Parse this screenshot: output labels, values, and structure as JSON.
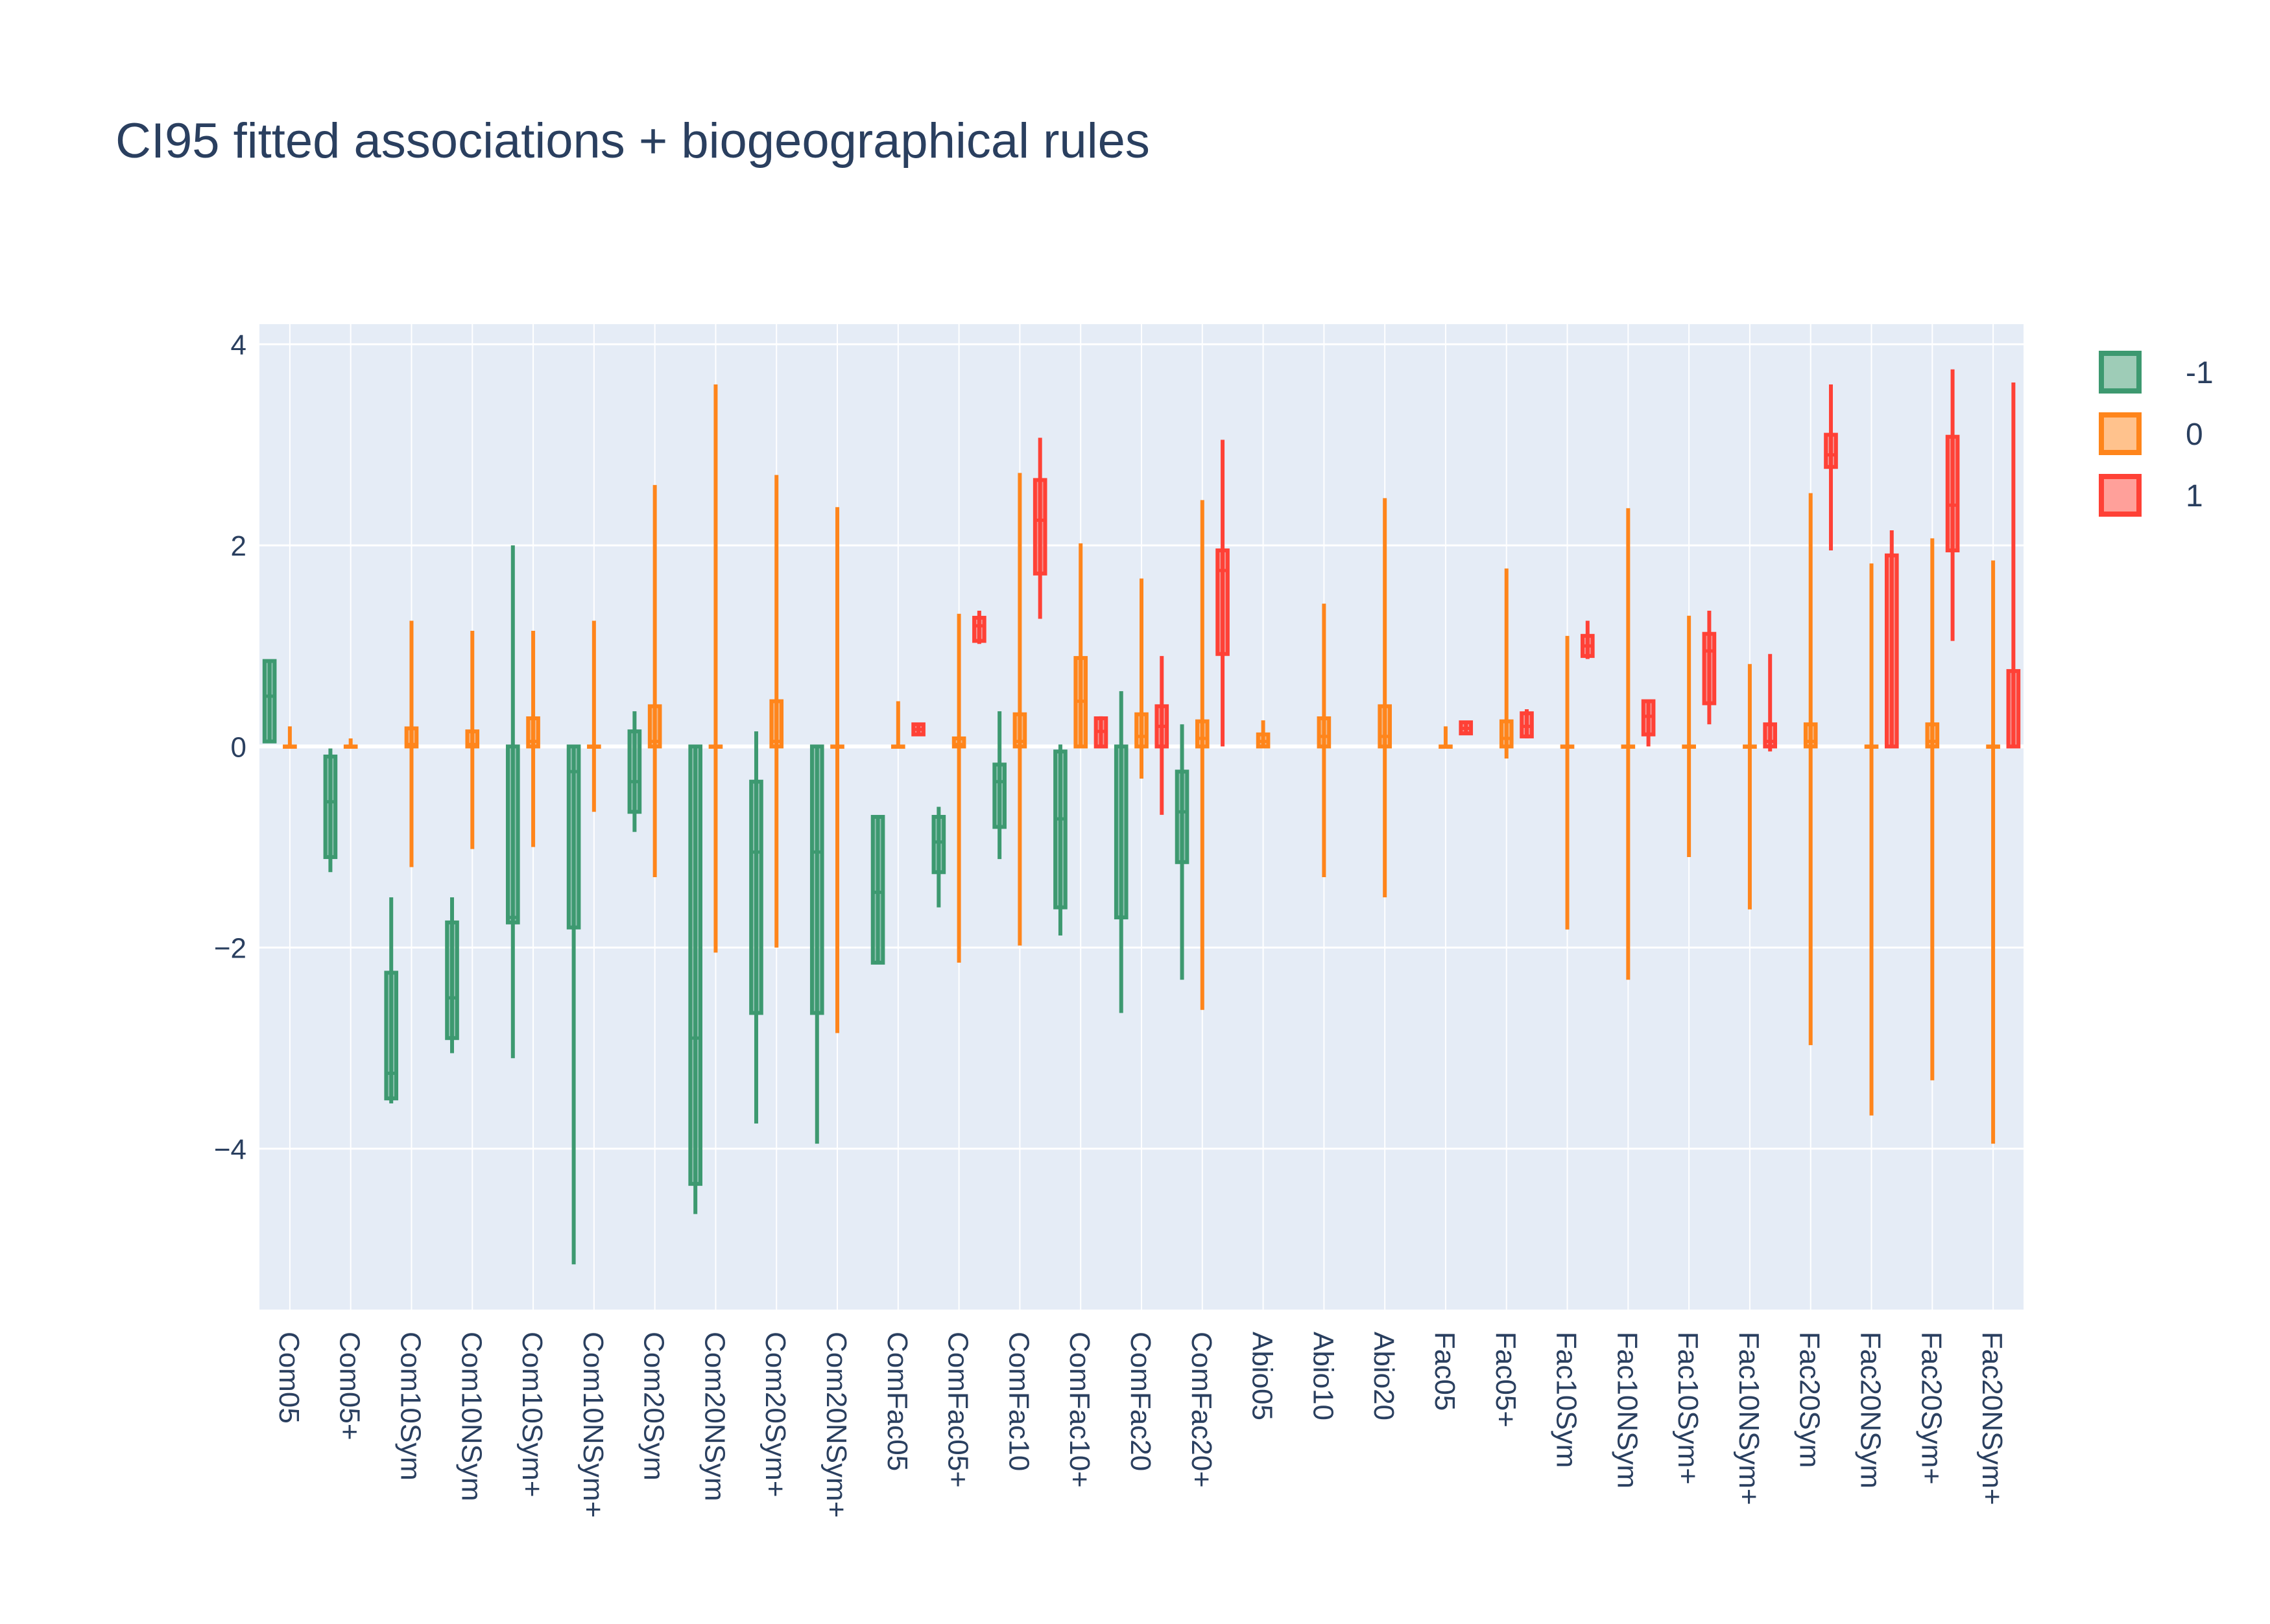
{
  "chart_data": {
    "type": "box",
    "title": "CI95 fitted associations + biogeographical rules",
    "xlabel": "",
    "ylabel": "",
    "ylim": [
      -5.6,
      4.2
    ],
    "yticks": [
      4,
      2,
      0,
      -2,
      -4
    ],
    "ytick_labels": [
      "4",
      "2",
      "0",
      "−2",
      "−4"
    ],
    "grid": true,
    "legend_position": "top-right",
    "categories": [
      "Com05",
      "Com05+",
      "Com10Sym",
      "Com10NSym",
      "Com10Sym+",
      "Com10NSym+",
      "Com20Sym",
      "Com20NSym",
      "Com20Sym+",
      "Com20NSym+",
      "ComFac05",
      "ComFac05+",
      "ComFac10",
      "ComFac10+",
      "ComFac20",
      "ComFac20+",
      "Abio05",
      "Abio10",
      "Abio20",
      "Fac05",
      "Fac05+",
      "Fac10Sym",
      "Fac10NSym",
      "Fac10Sym+",
      "Fac10NSym+",
      "Fac20Sym",
      "Fac20NSym",
      "Fac20Sym+",
      "Fac20NSym+"
    ],
    "series": [
      {
        "name": "-1",
        "color": "#3d9970",
        "fill": "rgba(61,153,112,0.5)",
        "boxes": [
          {
            "cat": "Com05",
            "lower": 0.05,
            "q1": 0.05,
            "median": 0.5,
            "q3": 0.85,
            "upper": 0.85
          },
          {
            "cat": "Com05+",
            "lower": -1.25,
            "q1": -1.1,
            "median": -0.55,
            "q3": -0.1,
            "upper": -0.02
          },
          {
            "cat": "Com10Sym",
            "lower": -3.55,
            "q1": -3.5,
            "median": -3.25,
            "q3": -2.25,
            "upper": -1.5
          },
          {
            "cat": "Com10NSym",
            "lower": -3.05,
            "q1": -2.9,
            "median": -2.5,
            "q3": -1.75,
            "upper": -1.5
          },
          {
            "cat": "Com10Sym+",
            "lower": -3.1,
            "q1": -1.75,
            "median": -1.7,
            "q3": 0.0,
            "upper": 2.0
          },
          {
            "cat": "Com10NSym+",
            "lower": -5.15,
            "q1": -1.8,
            "median": -0.25,
            "q3": 0.0,
            "upper": 0.0
          },
          {
            "cat": "Com20Sym",
            "lower": -0.85,
            "q1": -0.65,
            "median": -0.35,
            "q3": 0.15,
            "upper": 0.35
          },
          {
            "cat": "Com20NSym",
            "lower": -4.65,
            "q1": -4.35,
            "median": -2.9,
            "q3": 0.0,
            "upper": 0.0
          },
          {
            "cat": "Com20Sym+",
            "lower": -3.75,
            "q1": -2.65,
            "median": -1.05,
            "q3": -0.35,
            "upper": 0.15
          },
          {
            "cat": "Com20NSym+",
            "lower": -3.95,
            "q1": -2.65,
            "median": -1.05,
            "q3": 0.0,
            "upper": 0.0
          },
          {
            "cat": "ComFac05",
            "lower": -2.15,
            "q1": -2.15,
            "median": -1.45,
            "q3": -0.7,
            "upper": -0.7
          },
          {
            "cat": "ComFac05+",
            "lower": -1.6,
            "q1": -1.25,
            "median": -0.95,
            "q3": -0.7,
            "upper": -0.6
          },
          {
            "cat": "ComFac10",
            "lower": -1.12,
            "q1": -0.8,
            "median": -0.35,
            "q3": -0.18,
            "upper": 0.35
          },
          {
            "cat": "ComFac10+",
            "lower": -1.88,
            "q1": -1.6,
            "median": -0.72,
            "q3": -0.05,
            "upper": 0.02
          },
          {
            "cat": "ComFac20",
            "lower": -2.65,
            "q1": -1.7,
            "median": 0.0,
            "q3": 0.0,
            "upper": 0.55
          },
          {
            "cat": "ComFac20+",
            "lower": -2.32,
            "q1": -1.15,
            "median": -0.65,
            "q3": -0.25,
            "upper": 0.22
          }
        ]
      },
      {
        "name": "0",
        "color": "#ff851b",
        "fill": "rgba(255,133,27,0.5)",
        "boxes": [
          {
            "cat": "Com05",
            "lower": 0.0,
            "q1": 0.0,
            "median": 0.0,
            "q3": 0.0,
            "upper": 0.2
          },
          {
            "cat": "Com05+",
            "lower": 0.0,
            "q1": 0.0,
            "median": 0.0,
            "q3": 0.0,
            "upper": 0.08
          },
          {
            "cat": "Com10Sym",
            "lower": -1.2,
            "q1": 0.0,
            "median": 0.02,
            "q3": 0.18,
            "upper": 1.25
          },
          {
            "cat": "Com10NSym",
            "lower": -1.02,
            "q1": 0.0,
            "median": 0.02,
            "q3": 0.15,
            "upper": 1.15
          },
          {
            "cat": "Com10Sym+",
            "lower": -1.0,
            "q1": 0.0,
            "median": 0.05,
            "q3": 0.28,
            "upper": 1.15
          },
          {
            "cat": "Com10NSym+",
            "lower": -0.65,
            "q1": 0.0,
            "median": 0.0,
            "q3": 0.0,
            "upper": 1.25
          },
          {
            "cat": "Com20Sym",
            "lower": -1.3,
            "q1": 0.0,
            "median": 0.05,
            "q3": 0.4,
            "upper": 2.6
          },
          {
            "cat": "Com20NSym",
            "lower": -2.05,
            "q1": 0.0,
            "median": 0.0,
            "q3": 0.0,
            "upper": 3.6
          },
          {
            "cat": "Com20Sym+",
            "lower": -2.0,
            "q1": 0.0,
            "median": 0.05,
            "q3": 0.45,
            "upper": 2.7
          },
          {
            "cat": "Com20NSym+",
            "lower": -2.85,
            "q1": 0.0,
            "median": 0.0,
            "q3": 0.0,
            "upper": 2.38
          },
          {
            "cat": "ComFac05",
            "lower": 0.0,
            "q1": 0.0,
            "median": 0.0,
            "q3": 0.0,
            "upper": 0.45
          },
          {
            "cat": "ComFac05+",
            "lower": -2.15,
            "q1": 0.0,
            "median": 0.02,
            "q3": 0.08,
            "upper": 1.32
          },
          {
            "cat": "ComFac10",
            "lower": -1.98,
            "q1": 0.0,
            "median": 0.05,
            "q3": 0.32,
            "upper": 2.72
          },
          {
            "cat": "ComFac10+",
            "lower": 0.0,
            "q1": 0.0,
            "median": 0.45,
            "q3": 0.88,
            "upper": 2.02
          },
          {
            "cat": "ComFac20",
            "lower": -0.32,
            "q1": 0.0,
            "median": 0.1,
            "q3": 0.32,
            "upper": 1.67
          },
          {
            "cat": "ComFac20+",
            "lower": -2.62,
            "q1": 0.0,
            "median": 0.08,
            "q3": 0.25,
            "upper": 2.45
          },
          {
            "cat": "Abio05",
            "lower": 0.0,
            "q1": 0.0,
            "median": 0.05,
            "q3": 0.12,
            "upper": 0.26
          },
          {
            "cat": "Abio10",
            "lower": -1.3,
            "q1": 0.0,
            "median": 0.1,
            "q3": 0.28,
            "upper": 1.42
          },
          {
            "cat": "Abio20",
            "lower": -1.5,
            "q1": 0.0,
            "median": 0.1,
            "q3": 0.4,
            "upper": 2.47
          },
          {
            "cat": "Fac05",
            "lower": 0.0,
            "q1": 0.0,
            "median": 0.0,
            "q3": 0.0,
            "upper": 0.2
          },
          {
            "cat": "Fac05+",
            "lower": -0.12,
            "q1": 0.0,
            "median": 0.08,
            "q3": 0.25,
            "upper": 1.77
          },
          {
            "cat": "Fac10Sym",
            "lower": -1.82,
            "q1": 0.0,
            "median": 0.0,
            "q3": 0.0,
            "upper": 1.1
          },
          {
            "cat": "Fac10NSym",
            "lower": -2.32,
            "q1": 0.0,
            "median": 0.0,
            "q3": 0.0,
            "upper": 2.37
          },
          {
            "cat": "Fac10Sym+",
            "lower": -1.1,
            "q1": 0.0,
            "median": 0.0,
            "q3": 0.0,
            "upper": 1.3
          },
          {
            "cat": "Fac10NSym+",
            "lower": -1.62,
            "q1": 0.0,
            "median": 0.0,
            "q3": 0.0,
            "upper": 0.82
          },
          {
            "cat": "Fac20Sym",
            "lower": -2.97,
            "q1": 0.0,
            "median": 0.05,
            "q3": 0.22,
            "upper": 2.52
          },
          {
            "cat": "Fac20NSym",
            "lower": -3.67,
            "q1": 0.0,
            "median": 0.0,
            "q3": 0.0,
            "upper": 1.82
          },
          {
            "cat": "Fac20Sym+",
            "lower": -3.32,
            "q1": 0.0,
            "median": 0.05,
            "q3": 0.22,
            "upper": 2.07
          },
          {
            "cat": "Fac20NSym+",
            "lower": -3.95,
            "q1": 0.0,
            "median": 0.0,
            "q3": 0.0,
            "upper": 1.85
          }
        ]
      },
      {
        "name": "1",
        "color": "#ff4136",
        "fill": "rgba(255,65,54,0.5)",
        "boxes": [
          {
            "cat": "ComFac05",
            "lower": 0.12,
            "q1": 0.12,
            "median": 0.17,
            "q3": 0.22,
            "upper": 0.22
          },
          {
            "cat": "ComFac05+",
            "lower": 1.02,
            "q1": 1.05,
            "median": 1.2,
            "q3": 1.28,
            "upper": 1.35
          },
          {
            "cat": "ComFac10",
            "lower": 1.27,
            "q1": 1.72,
            "median": 2.25,
            "q3": 2.65,
            "upper": 3.07
          },
          {
            "cat": "ComFac10+",
            "lower": 0.0,
            "q1": 0.0,
            "median": 0.15,
            "q3": 0.28,
            "upper": 0.3
          },
          {
            "cat": "ComFac20",
            "lower": -0.68,
            "q1": 0.0,
            "median": 0.2,
            "q3": 0.4,
            "upper": 0.9
          },
          {
            "cat": "ComFac20+",
            "lower": 0.0,
            "q1": 0.92,
            "median": 1.75,
            "q3": 1.95,
            "upper": 3.05
          },
          {
            "cat": "Fac05",
            "lower": 0.13,
            "q1": 0.13,
            "median": 0.18,
            "q3": 0.24,
            "upper": 0.24
          },
          {
            "cat": "Fac05+",
            "lower": 0.08,
            "q1": 0.1,
            "median": 0.2,
            "q3": 0.33,
            "upper": 0.37
          },
          {
            "cat": "Fac10Sym",
            "lower": 0.87,
            "q1": 0.9,
            "median": 1.0,
            "q3": 1.1,
            "upper": 1.25
          },
          {
            "cat": "Fac10NSym",
            "lower": 0.0,
            "q1": 0.12,
            "median": 0.3,
            "q3": 0.45,
            "upper": 0.45
          },
          {
            "cat": "Fac10Sym+",
            "lower": 0.22,
            "q1": 0.43,
            "median": 0.95,
            "q3": 1.12,
            "upper": 1.35
          },
          {
            "cat": "Fac10NSym+",
            "lower": -0.05,
            "q1": 0.0,
            "median": 0.05,
            "q3": 0.22,
            "upper": 0.92
          },
          {
            "cat": "Fac20Sym",
            "lower": 1.95,
            "q1": 2.78,
            "median": 2.9,
            "q3": 3.1,
            "upper": 3.6
          },
          {
            "cat": "Fac20NSym",
            "lower": 0.0,
            "q1": 0.0,
            "median": 0.0,
            "q3": 1.9,
            "upper": 2.15
          },
          {
            "cat": "Fac20Sym+",
            "lower": 1.05,
            "q1": 1.95,
            "median": 2.4,
            "q3": 3.08,
            "upper": 3.75
          },
          {
            "cat": "Fac20NSym+",
            "lower": 0.0,
            "q1": 0.0,
            "median": 0.0,
            "q3": 0.75,
            "upper": 3.62
          }
        ]
      }
    ]
  }
}
